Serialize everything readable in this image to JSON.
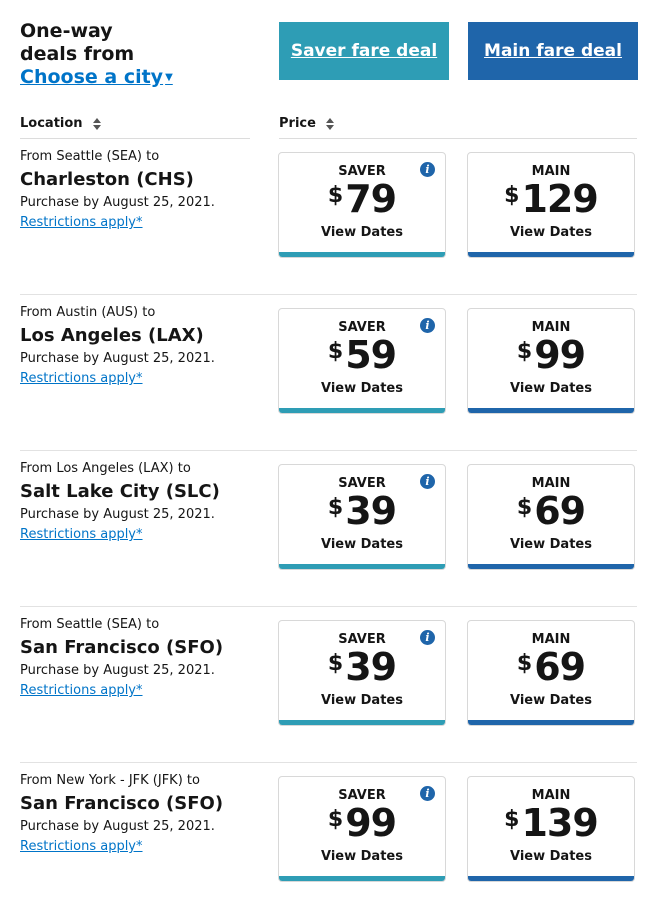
{
  "colors": {
    "saver": "#2e9db5",
    "main": "#1f65aa",
    "link": "#0074c8"
  },
  "header": {
    "title_line1": "One-way",
    "title_line2": "deals from",
    "city_link": "Choose a city",
    "saver_button": "Saver fare deal",
    "main_button": "Main fare deal"
  },
  "columns": {
    "location": "Location",
    "price": "Price"
  },
  "fare_labels": {
    "saver": "SAVER",
    "main": "MAIN",
    "view_dates": "View Dates",
    "currency": "$",
    "info": "i"
  },
  "deals": [
    {
      "from": "From Seattle (SEA) to",
      "destination": "Charleston (CHS)",
      "purchase": "Purchase by August 25, 2021.",
      "restrictions": "Restrictions apply*",
      "saver_price": "79",
      "main_price": "129"
    },
    {
      "from": "From Austin (AUS) to",
      "destination": "Los Angeles (LAX)",
      "purchase": "Purchase by August 25, 2021.",
      "restrictions": "Restrictions apply*",
      "saver_price": "59",
      "main_price": "99"
    },
    {
      "from": "From Los Angeles (LAX) to",
      "destination": "Salt Lake City (SLC)",
      "purchase": "Purchase by August 25, 2021.",
      "restrictions": "Restrictions apply*",
      "saver_price": "39",
      "main_price": "69"
    },
    {
      "from": "From Seattle (SEA) to",
      "destination": "San Francisco (SFO)",
      "purchase": "Purchase by August 25, 2021.",
      "restrictions": "Restrictions apply*",
      "saver_price": "39",
      "main_price": "69"
    },
    {
      "from": "From New York - JFK (JFK) to",
      "destination": "San Francisco (SFO)",
      "purchase": "Purchase by August 25, 2021.",
      "restrictions": "Restrictions apply*",
      "saver_price": "99",
      "main_price": "139"
    }
  ]
}
